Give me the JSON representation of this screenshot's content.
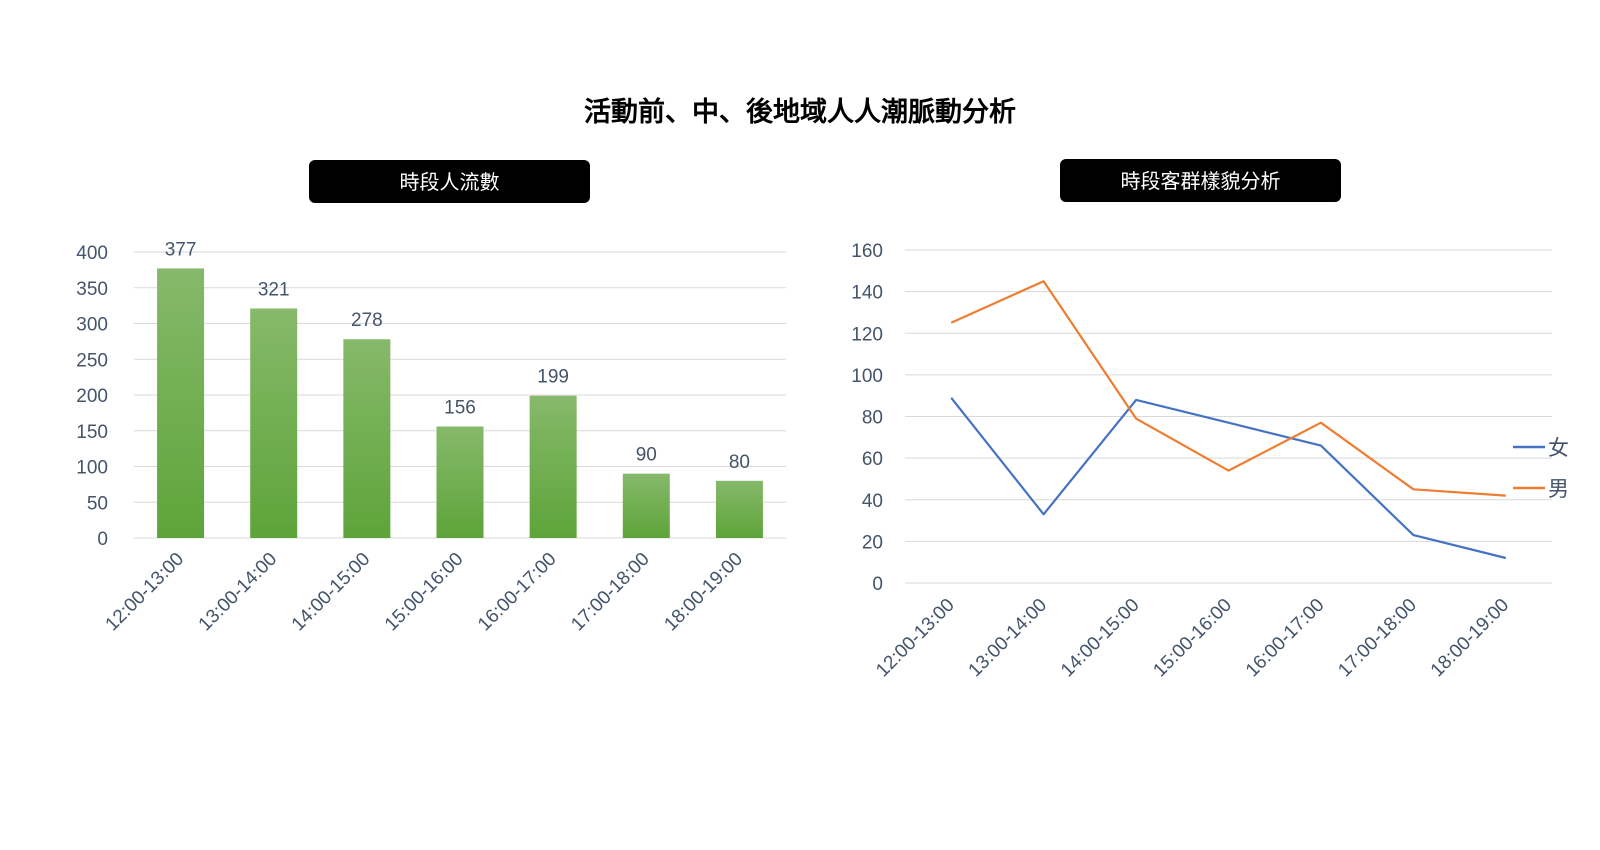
{
  "title": "活動前、中、後地域人人潮脈動分析",
  "colors": {
    "bar_top": "#86b96a",
    "bar_bottom": "#5ea43a",
    "female": "#4472c4",
    "male": "#ed7d31",
    "text": "#44546a",
    "grid": "#d9d9d9"
  },
  "chart_data": [
    {
      "type": "bar",
      "title": "時段人流數",
      "categories": [
        "12:00-13:00",
        "13:00-14:00",
        "14:00-15:00",
        "15:00-16:00",
        "16:00-17:00",
        "17:00-18:00",
        "18:00-19:00"
      ],
      "values": [
        377,
        321,
        278,
        156,
        199,
        90,
        80
      ],
      "yticks": [
        0,
        50,
        100,
        150,
        200,
        250,
        300,
        350,
        400
      ],
      "ylim": [
        0,
        400
      ],
      "grid": true,
      "data_labels": true
    },
    {
      "type": "line",
      "title": "時段客群樣貌分析",
      "categories": [
        "12:00-13:00",
        "13:00-14:00",
        "14:00-15:00",
        "15:00-16:00",
        "16:00-17:00",
        "17:00-18:00",
        "18:00-19:00"
      ],
      "series": [
        {
          "name": "女",
          "values": [
            89,
            33,
            88,
            77,
            66,
            23,
            12
          ]
        },
        {
          "name": "男",
          "values": [
            125,
            145,
            79,
            54,
            77,
            45,
            42
          ]
        }
      ],
      "yticks": [
        0,
        20,
        40,
        60,
        80,
        100,
        120,
        140,
        160
      ],
      "ylim": [
        0,
        160
      ],
      "grid": true,
      "legend": "right"
    }
  ]
}
